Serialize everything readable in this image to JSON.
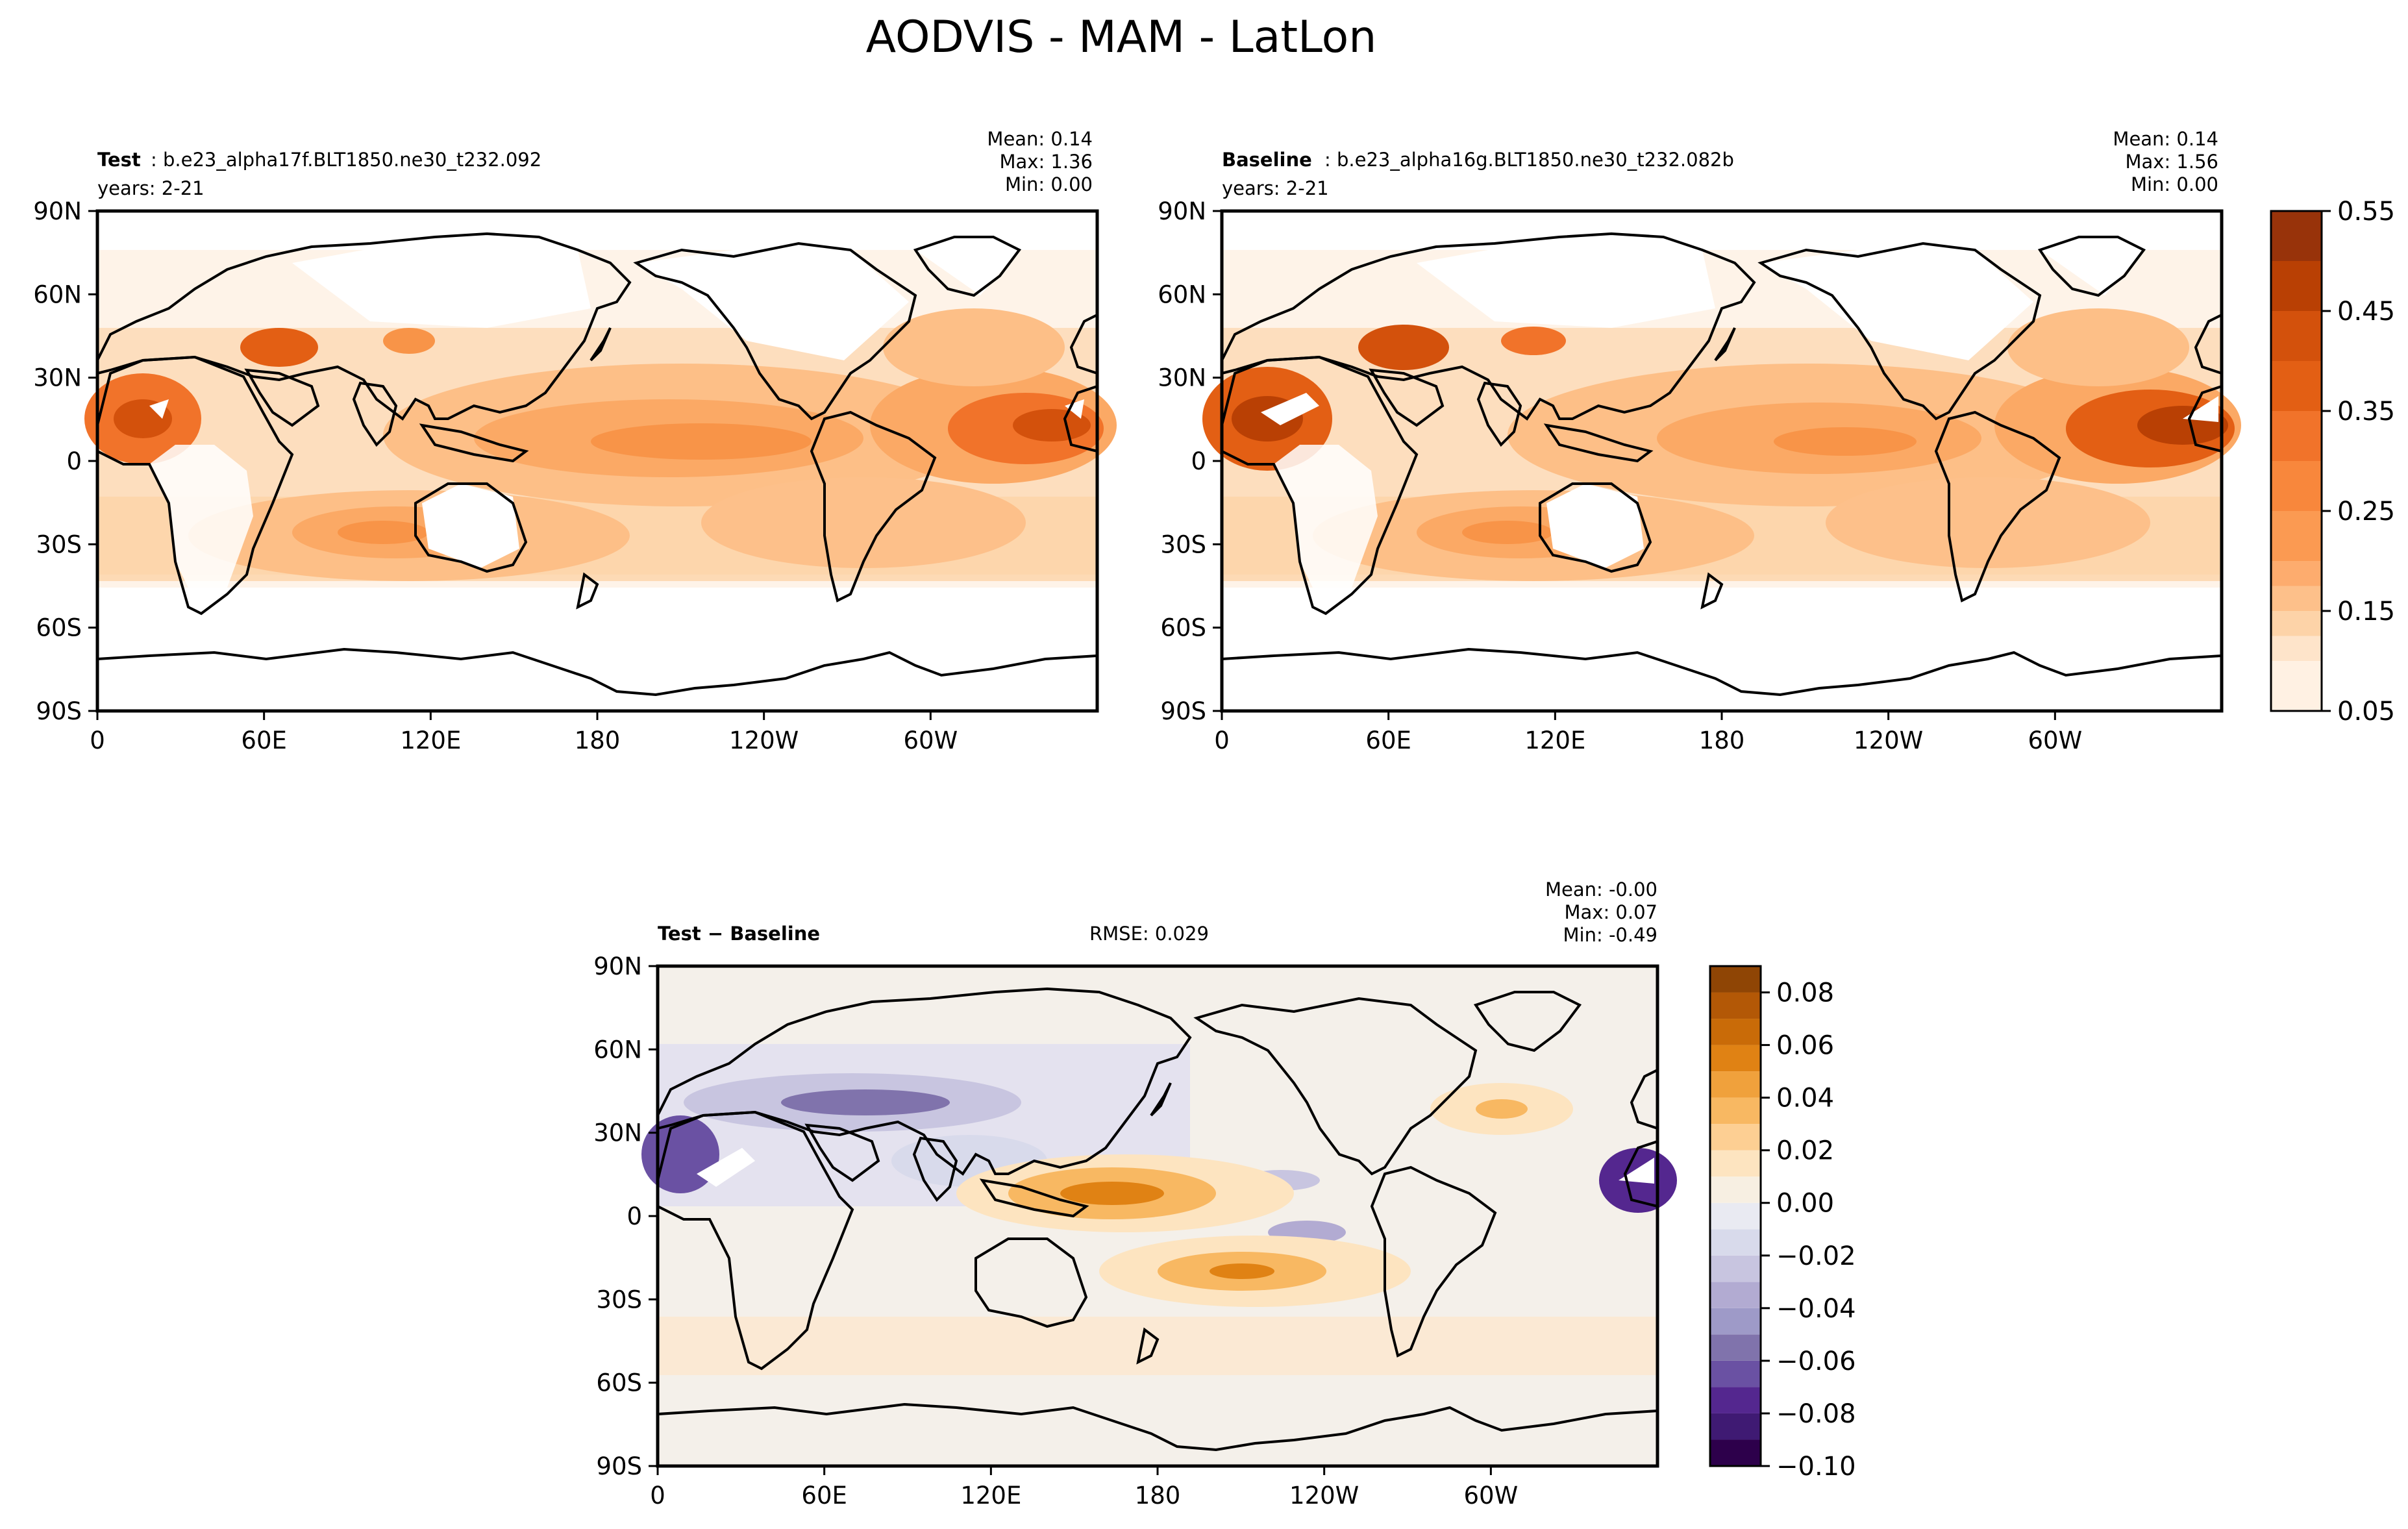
{
  "figure": {
    "title": "AODVIS - MAM - LatLon"
  },
  "chart_data": [
    {
      "type": "heatmap",
      "name": "test",
      "label": "Test",
      "case": ": b.e23_alpha17f.BLT1850.ne30_t232.092",
      "years": "years: 2-21",
      "stats": {
        "mean": "Mean:  0.14",
        "max": "Max:  1.36",
        "min": "Min:  0.00"
      },
      "x_ticks": [
        "0",
        "60E",
        "120E",
        "180",
        "120W",
        "60W"
      ],
      "y_ticks": [
        "90N",
        "60N",
        "30N",
        "0",
        "30S",
        "60S",
        "90S"
      ],
      "xlim": [
        0,
        360
      ],
      "ylim": [
        -90,
        90
      ],
      "colormap": "oranges",
      "colorbar_shared": "levels"
    },
    {
      "type": "heatmap",
      "name": "baseline",
      "label": "Baseline",
      "case": ": b.e23_alpha16g.BLT1850.ne30_t232.082b",
      "years": "years: 2-21",
      "stats": {
        "mean": "Mean:  0.14",
        "max": "Max:  1.56",
        "min": "Min:  0.00"
      },
      "x_ticks": [
        "0",
        "60E",
        "120E",
        "180",
        "120W",
        "60W"
      ],
      "y_ticks": [
        "90N",
        "60N",
        "30N",
        "0",
        "30S",
        "60S",
        "90S"
      ],
      "xlim": [
        0,
        360
      ],
      "ylim": [
        -90,
        90
      ],
      "colormap": "oranges",
      "colorbar": {
        "ticks": [
          "0.55",
          "0.45",
          "0.35",
          "0.25",
          "0.15",
          "0.05"
        ],
        "levels": [
          0.05,
          0.1,
          0.125,
          0.15,
          0.175,
          0.2,
          0.25,
          0.3,
          0.35,
          0.4,
          0.45,
          0.5,
          0.55
        ],
        "colors": [
          "#fff1e3",
          "#fee4ca",
          "#fdd3a8",
          "#fdc08a",
          "#fdac6e",
          "#fb9a52",
          "#f8873c",
          "#f1732a",
          "#e35f14",
          "#d3510c",
          "#b94004",
          "#98330a"
        ]
      }
    },
    {
      "type": "heatmap",
      "name": "difference",
      "label": "Test − Baseline",
      "rmse": "RMSE: 0.029",
      "stats": {
        "mean": "Mean: -0.00",
        "max": "Max:  0.07",
        "min": "Min: -0.49"
      },
      "x_ticks": [
        "0",
        "60E",
        "120E",
        "180",
        "120W",
        "60W"
      ],
      "y_ticks": [
        "90N",
        "60N",
        "30N",
        "0",
        "30S",
        "60S",
        "90S"
      ],
      "xlim": [
        0,
        360
      ],
      "ylim": [
        -90,
        90
      ],
      "colormap": "PuOr_r",
      "colorbar": {
        "ticks": [
          "0.08",
          "0.06",
          "0.04",
          "0.02",
          "0.00",
          "−0.02",
          "−0.04",
          "−0.06",
          "−0.08",
          "−0.10"
        ],
        "levels": [
          -0.1,
          -0.09,
          -0.08,
          -0.07,
          -0.06,
          -0.05,
          -0.04,
          -0.03,
          -0.02,
          -0.01,
          0.0,
          0.01,
          0.02,
          0.03,
          0.04,
          0.05,
          0.06,
          0.07,
          0.08,
          0.09
        ],
        "colors": [
          "#2d004b",
          "#3f1a73",
          "#54278f",
          "#6a51a3",
          "#8073ac",
          "#9e9ac8",
          "#b2abd2",
          "#c8c5e0",
          "#d8daeb",
          "#e9eaf2",
          "#f7efe2",
          "#fde4c0",
          "#fdcf93",
          "#f8b862",
          "#f0a13c",
          "#e08214",
          "#c96b08",
          "#b35806",
          "#8f4505"
        ]
      }
    }
  ]
}
